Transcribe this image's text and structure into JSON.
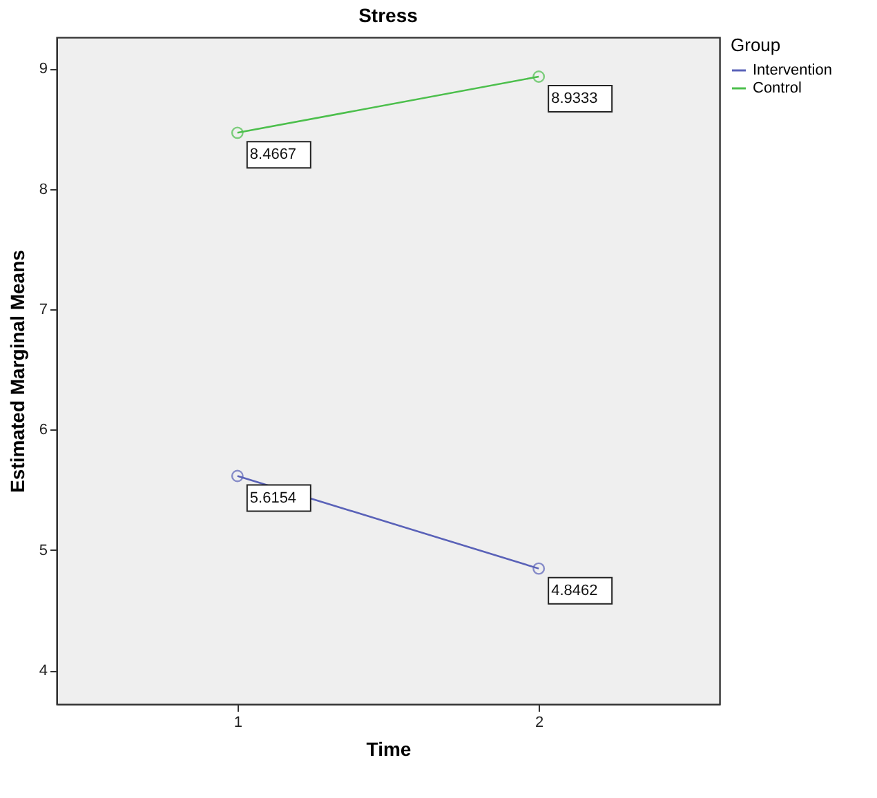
{
  "chart_data": {
    "type": "line",
    "title": "Stress",
    "xlabel": "Time",
    "ylabel": "Estimated Marginal Means",
    "legend_title": "Group",
    "categories": [
      "1",
      "2"
    ],
    "series": [
      {
        "name": "Intervention",
        "color": "#5a62b8",
        "values": [
          5.6154,
          4.8462
        ]
      },
      {
        "name": "Control",
        "color": "#4cbf4c",
        "values": [
          8.4667,
          8.9333
        ]
      }
    ],
    "ylim": [
      3.72,
      9.26
    ],
    "yticks": [
      4,
      5,
      6,
      7,
      8,
      9
    ],
    "marker": "circle",
    "data_labels": true,
    "legend": "right",
    "grid": false
  }
}
